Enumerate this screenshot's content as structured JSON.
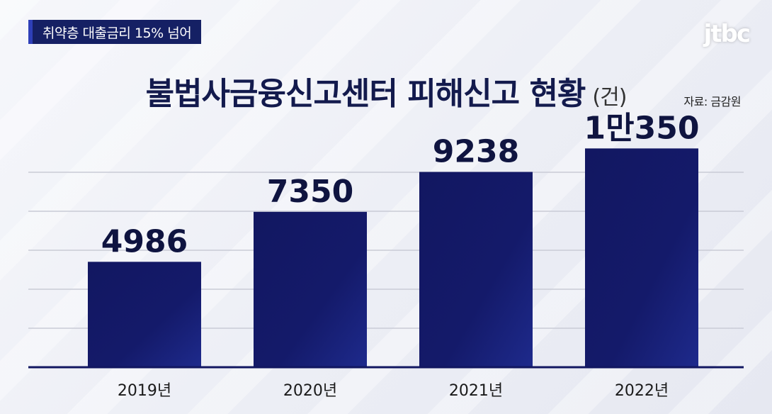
{
  "topic_badge": "취약층 대출금리 15% 넘어",
  "logo": "jtbc",
  "title": "불법사금융신고센터 피해신고 현황",
  "title_unit": "(건)",
  "source": "자료: 금감원",
  "colors": {
    "bar": "#121761",
    "bar_highlight": "#1e2a8c",
    "badge": "#152064",
    "grid": "#c9cbd6",
    "baseline": "#121761"
  },
  "chart_data": {
    "type": "bar",
    "title": "불법사금융신고센터 피해신고 현황",
    "unit": "(건)",
    "categories": [
      "2019년",
      "2020년",
      "2021년",
      "2022년"
    ],
    "values": [
      4986,
      7350,
      9238,
      10350
    ],
    "data_labels": [
      "4986",
      "7350",
      "9238",
      "1만350"
    ],
    "grid": true,
    "legend": "none"
  }
}
